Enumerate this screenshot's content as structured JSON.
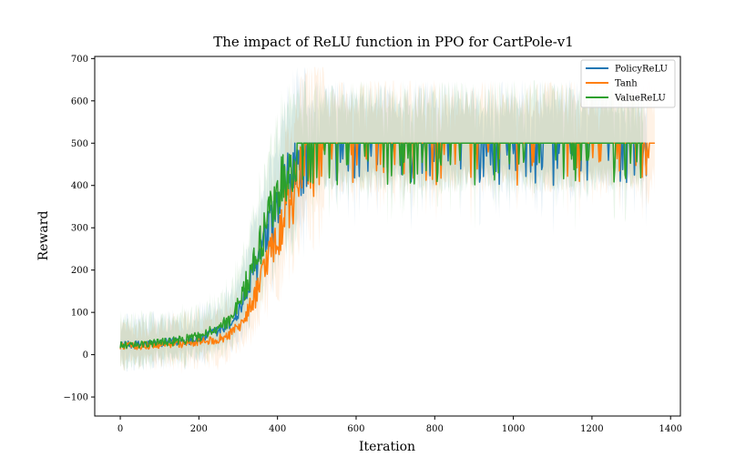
{
  "chart_data": {
    "type": "line",
    "title": "The impact of ReLU function in PPO for CartPole-v1",
    "xlabel": "Iteration",
    "ylabel": "Reward",
    "xlim": [
      -65,
      1425
    ],
    "ylim": [
      -145,
      705
    ],
    "xticks": [
      0,
      200,
      400,
      600,
      800,
      1000,
      1200,
      1400
    ],
    "yticks": [
      -100,
      0,
      100,
      200,
      300,
      400,
      500,
      600,
      700
    ],
    "xtick_labels": [
      "0",
      "200",
      "400",
      "600",
      "800",
      "1000",
      "1200",
      "1400"
    ],
    "ytick_labels": [
      "−100",
      "0",
      "100",
      "200",
      "300",
      "400",
      "500",
      "600",
      "700"
    ],
    "grid": false,
    "legend_position": "top-right",
    "series": [
      {
        "name": "PolicyReLU",
        "color": "#1f77b4",
        "x_range": [
          0,
          1340
        ],
        "x": [
          0,
          50,
          100,
          150,
          200,
          250,
          280,
          300,
          320,
          340,
          360,
          380,
          400,
          420,
          440,
          460,
          480,
          500,
          550,
          600,
          700,
          800,
          900,
          1000,
          1100,
          1200,
          1300,
          1340
        ],
        "y": [
          22,
          24,
          27,
          31,
          38,
          55,
          75,
          100,
          140,
          195,
          250,
          290,
          340,
          390,
          430,
          455,
          475,
          485,
          488,
          490,
          493,
          492,
          495,
          494,
          496,
          495,
          494,
          496
        ]
      },
      {
        "name": "Tanh",
        "color": "#ff7f0e",
        "x_range": [
          0,
          1360
        ],
        "x": [
          0,
          50,
          100,
          150,
          200,
          250,
          280,
          300,
          320,
          340,
          360,
          380,
          400,
          420,
          440,
          460,
          480,
          500,
          550,
          600,
          700,
          800,
          900,
          1000,
          1100,
          1200,
          1300,
          1360
        ],
        "y": [
          20,
          21,
          23,
          26,
          30,
          38,
          48,
          65,
          90,
          130,
          180,
          230,
          280,
          330,
          380,
          420,
          450,
          465,
          478,
          485,
          490,
          488,
          492,
          493,
          494,
          493,
          495,
          493
        ]
      },
      {
        "name": "ValueReLU",
        "color": "#2ca02c",
        "x_range": [
          0,
          1330
        ],
        "x": [
          0,
          50,
          100,
          150,
          200,
          250,
          280,
          300,
          320,
          340,
          360,
          380,
          400,
          420,
          440,
          460,
          480,
          500,
          550,
          600,
          700,
          800,
          900,
          1000,
          1100,
          1200,
          1300,
          1330
        ],
        "y": [
          22,
          24,
          28,
          33,
          42,
          62,
          88,
          120,
          165,
          220,
          270,
          320,
          370,
          420,
          460,
          480,
          490,
          493,
          494,
          495,
          496,
          495,
          496,
          494,
          493,
          494,
          495,
          494
        ]
      }
    ]
  }
}
